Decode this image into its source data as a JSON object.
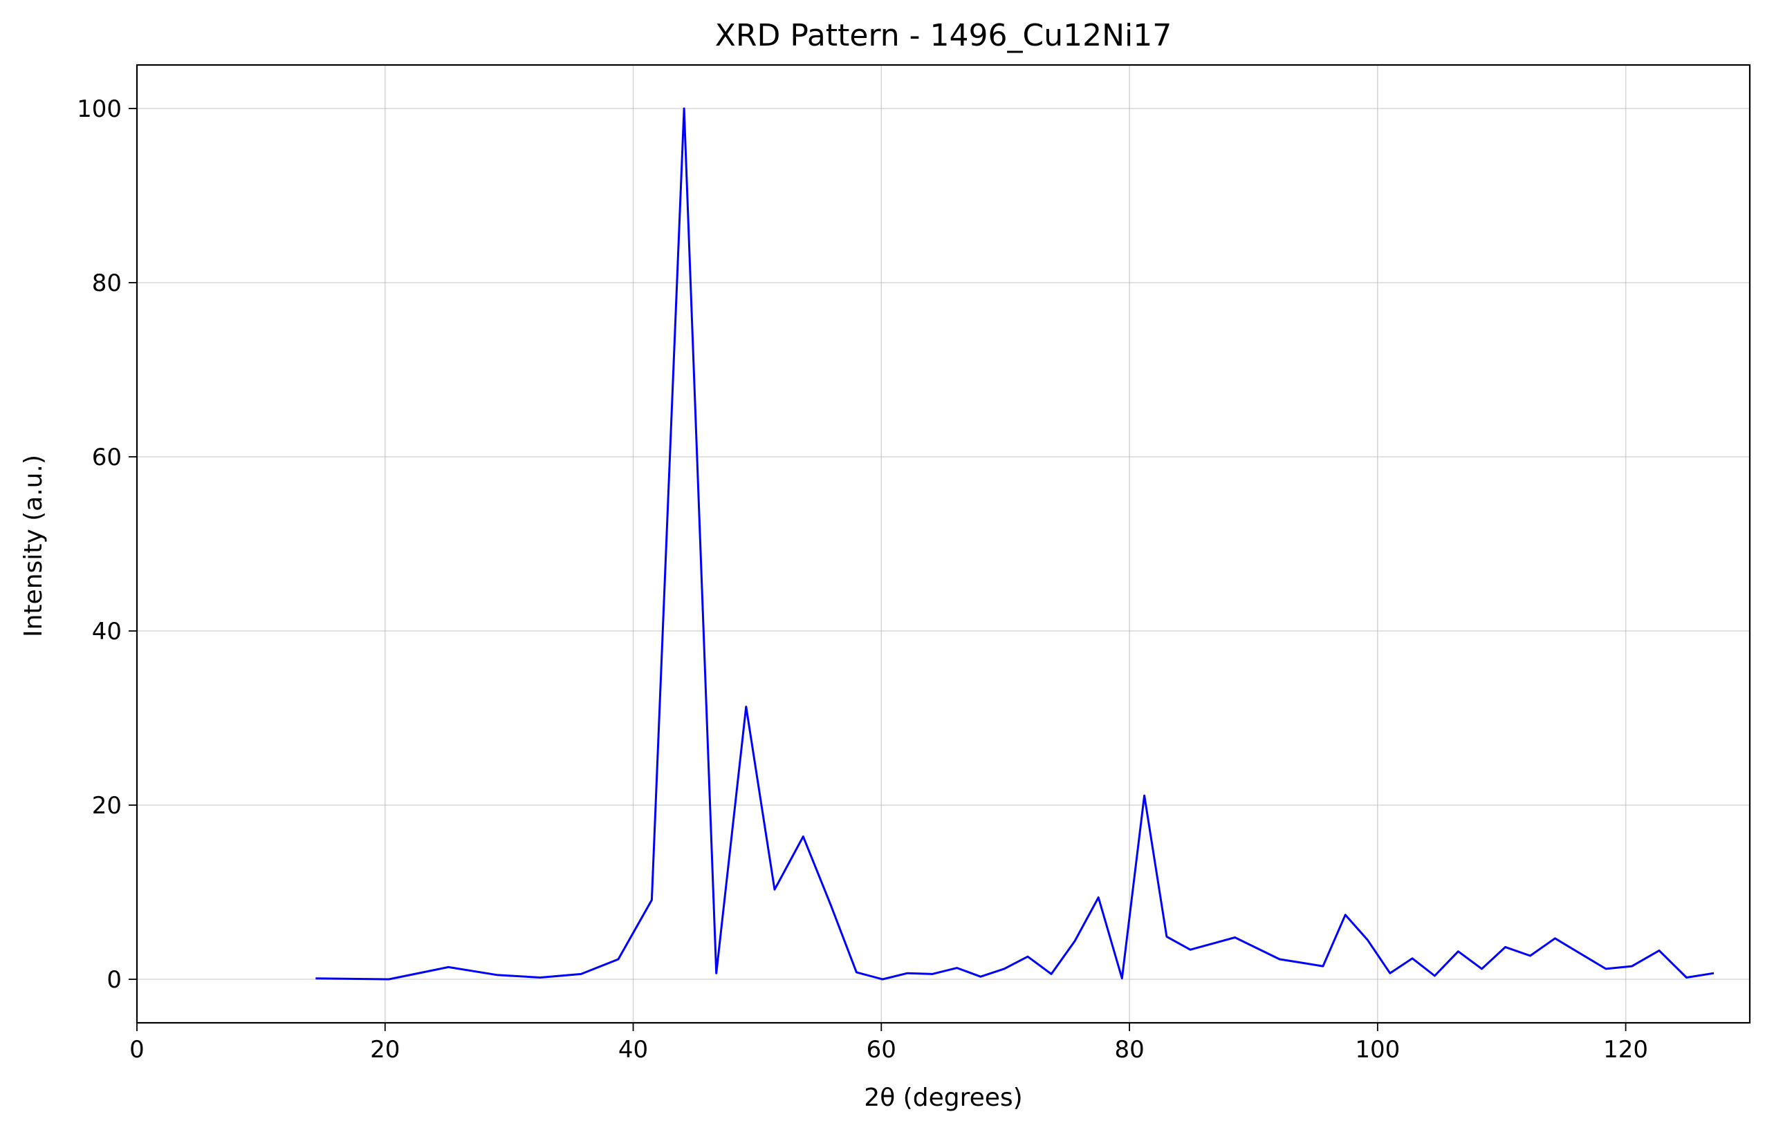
{
  "chart_data": {
    "type": "line",
    "title": "XRD Pattern - 1496_Cu12Ni17",
    "xlabel": "2θ (degrees)",
    "ylabel": "Intensity (a.u.)",
    "xlim": [
      0,
      130
    ],
    "ylim": [
      -5,
      105
    ],
    "x_ticks": [
      0,
      20,
      40,
      60,
      80,
      100,
      120
    ],
    "y_ticks": [
      0,
      20,
      40,
      60,
      80,
      100
    ],
    "grid": true,
    "line_color": "#0000ff",
    "series": [
      {
        "x": [
          14.4,
          20.3,
          25.1,
          29.0,
          32.5,
          35.8,
          38.8,
          41.5,
          44.1,
          46.7,
          49.1,
          51.4,
          53.7,
          55.9,
          58.0,
          60.1,
          62.1,
          64.1,
          66.1,
          68.0,
          69.9,
          71.8,
          73.7,
          75.6,
          77.5,
          79.4,
          81.2,
          83.0,
          84.9,
          88.5,
          92.1,
          93.9,
          95.6,
          97.4,
          99.2,
          101.0,
          102.8,
          104.6,
          106.5,
          108.4,
          110.3,
          112.3,
          114.3,
          118.4,
          120.5,
          122.7,
          124.9,
          127.1
        ],
        "y": [
          0.1,
          0.0,
          1.4,
          0.5,
          0.2,
          0.6,
          2.3,
          9.1,
          100.0,
          0.7,
          31.3,
          10.3,
          16.4,
          8.6,
          0.8,
          0.0,
          0.7,
          0.6,
          1.3,
          0.3,
          1.2,
          2.6,
          0.6,
          4.4,
          9.4,
          0.1,
          21.1,
          4.9,
          3.4,
          4.8,
          2.3,
          1.9,
          1.5,
          7.4,
          4.5,
          0.7,
          2.4,
          0.4,
          3.2,
          1.2,
          3.7,
          2.7,
          4.7,
          1.2,
          1.5,
          3.3,
          0.2,
          0.7
        ]
      }
    ]
  }
}
